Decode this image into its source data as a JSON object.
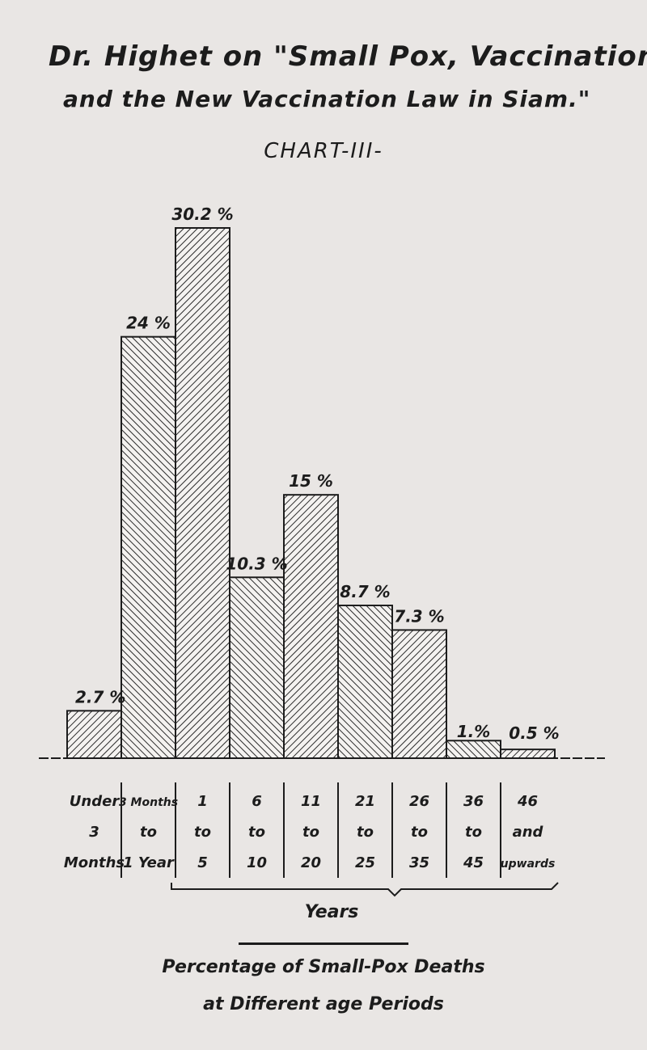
{
  "header": {
    "line1": "Dr. Highet on \"Small Pox, Vaccination",
    "line2": "and the New Vaccination Law in Siam.\"",
    "chart_label": "CHART-III-"
  },
  "caption": {
    "line1": "Percentage of Small-Pox Deaths",
    "line2": "at Different age Periods"
  },
  "chart_data": {
    "type": "bar",
    "title": "CHART-III-",
    "xlabel": "Years",
    "ylabel": "",
    "ylim": [
      0,
      31
    ],
    "grid": false,
    "categories": [
      [
        "Under",
        "3",
        "Months"
      ],
      [
        "3 Months",
        "to",
        "1 Year"
      ],
      [
        "1",
        "to",
        "5"
      ],
      [
        "6",
        "to",
        "10"
      ],
      [
        "11",
        "to",
        "20"
      ],
      [
        "21",
        "to",
        "25"
      ],
      [
        "26",
        "to",
        "35"
      ],
      [
        "36",
        "to",
        "45"
      ],
      [
        "46",
        "and",
        "upwards"
      ]
    ],
    "values": [
      2.7,
      24,
      30.2,
      10.3,
      15,
      8.7,
      7.3,
      1,
      0.5
    ],
    "data_labels": [
      "2.7 %",
      "24 %",
      "30.2 %",
      "10.3 %",
      "15 %",
      "8.7 %",
      "7.3 %",
      "1.%",
      "0.5 %"
    ],
    "hatch": [
      "fwd",
      "back",
      "fwd",
      "back",
      "fwd",
      "back",
      "fwd",
      "back",
      "fwd"
    ]
  }
}
